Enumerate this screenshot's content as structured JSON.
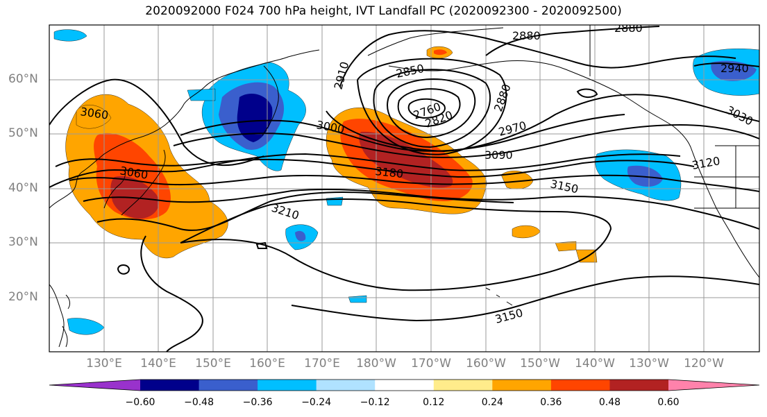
{
  "title": "2020092000 F024 700 hPa height, IVT Landfall PC (2020092300 - 2020092500)",
  "map": {
    "lat_labels": [
      "60°N",
      "50°N",
      "40°N",
      "30°N",
      "20°N"
    ],
    "lon_labels": [
      "130°E",
      "140°E",
      "150°E",
      "160°E",
      "170°E",
      "180°W",
      "170°W",
      "160°W",
      "150°W",
      "140°W",
      "130°W",
      "120°W"
    ],
    "extent": {
      "lon_min": 120,
      "lon_max": 250,
      "lat_min": 10,
      "lat_max": 70
    },
    "gridlines": true,
    "contour_labels": [
      "2880",
      "2880",
      "2940",
      "2910",
      "2850",
      "2760",
      "2820",
      "2880",
      "3060",
      "3000",
      "2970",
      "3030",
      "3060",
      "3180",
      "3090",
      "3120",
      "3150",
      "3210",
      "3150"
    ]
  },
  "colorbar": {
    "labels": [
      "−0.60",
      "−0.48",
      "−0.36",
      "−0.24",
      "−0.12",
      "0.12",
      "0.24",
      "0.36",
      "0.48",
      "0.60"
    ],
    "colors": [
      "#9932cc",
      "#00008b",
      "#3a5fcd",
      "#00bfff",
      "#b0e2ff",
      "#ffffff",
      "#ffec8b",
      "#ffa500",
      "#ff4500",
      "#b22222",
      "#ff82ab"
    ]
  }
}
